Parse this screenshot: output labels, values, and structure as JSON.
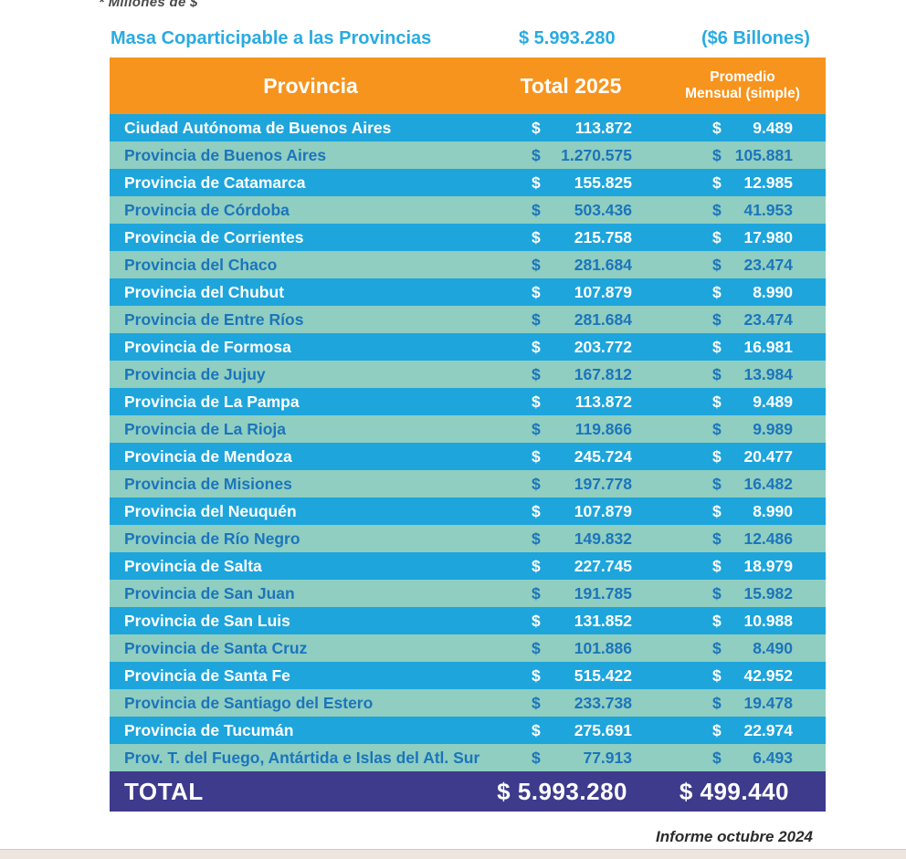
{
  "top_note": "* Millones de $",
  "summary": {
    "label": "Masa Coparticipable a las Provincias",
    "amount": "$ 5.993.280",
    "aside": "($6 Billones)"
  },
  "table": {
    "currency": "$",
    "headers": {
      "province": "Provincia",
      "total": "Total 2025",
      "monthly_line1": "Promedio",
      "monthly_line2": "Mensual (simple)"
    },
    "rows": [
      {
        "name": "Ciudad Autónoma de Buenos Aires",
        "total": "113.872",
        "monthly": "9.489"
      },
      {
        "name": "Provincia de Buenos Aires",
        "total": "1.270.575",
        "monthly": "105.881"
      },
      {
        "name": "Provincia de Catamarca",
        "total": "155.825",
        "monthly": "12.985"
      },
      {
        "name": "Provincia de Córdoba",
        "total": "503.436",
        "monthly": "41.953"
      },
      {
        "name": "Provincia de Corrientes",
        "total": "215.758",
        "monthly": "17.980"
      },
      {
        "name": "Provincia del Chaco",
        "total": "281.684",
        "monthly": "23.474"
      },
      {
        "name": "Provincia del Chubut",
        "total": "107.879",
        "monthly": "8.990"
      },
      {
        "name": "Provincia de Entre Ríos",
        "total": "281.684",
        "monthly": "23.474"
      },
      {
        "name": "Provincia de Formosa",
        "total": "203.772",
        "monthly": "16.981"
      },
      {
        "name": "Provincia de Jujuy",
        "total": "167.812",
        "monthly": "13.984"
      },
      {
        "name": "Provincia de La Pampa",
        "total": "113.872",
        "monthly": "9.489"
      },
      {
        "name": "Provincia de La Rioja",
        "total": "119.866",
        "monthly": "9.989"
      },
      {
        "name": "Provincia de Mendoza",
        "total": "245.724",
        "monthly": "20.477"
      },
      {
        "name": "Provincia de Misiones",
        "total": "197.778",
        "monthly": "16.482"
      },
      {
        "name": "Provincia del Neuquén",
        "total": "107.879",
        "monthly": "8.990"
      },
      {
        "name": "Provincia de Río Negro",
        "total": "149.832",
        "monthly": "12.486"
      },
      {
        "name": "Provincia de Salta",
        "total": "227.745",
        "monthly": "18.979"
      },
      {
        "name": "Provincia de San Juan",
        "total": "191.785",
        "monthly": "15.982"
      },
      {
        "name": "Provincia de San Luis",
        "total": "131.852",
        "monthly": "10.988"
      },
      {
        "name": "Provincia de Santa Cruz",
        "total": "101.886",
        "monthly": "8.490"
      },
      {
        "name": "Provincia de Santa Fe",
        "total": "515.422",
        "monthly": "42.952"
      },
      {
        "name": "Provincia de Santiago del Estero",
        "total": "233.738",
        "monthly": "19.478"
      },
      {
        "name": "Provincia de Tucumán",
        "total": "275.691",
        "monthly": "22.974"
      },
      {
        "name": "Prov. T. del Fuego, Antártida e Islas del Atl. Sur",
        "total": "77.913",
        "monthly": "6.493"
      }
    ],
    "total_row": {
      "label": "TOTAL",
      "total": "$ 5.993.280",
      "monthly": "$ 499.440"
    }
  },
  "footer_note": "Informe octubre 2024",
  "colors": {
    "accent_cyan": "#29ABE2",
    "header_bg": "#F7941E",
    "row_blue": "#1DA5DC",
    "row_teal": "#8FCEC1",
    "row_teal_text": "#1B75BC",
    "total_bg": "#3E3B8D"
  }
}
